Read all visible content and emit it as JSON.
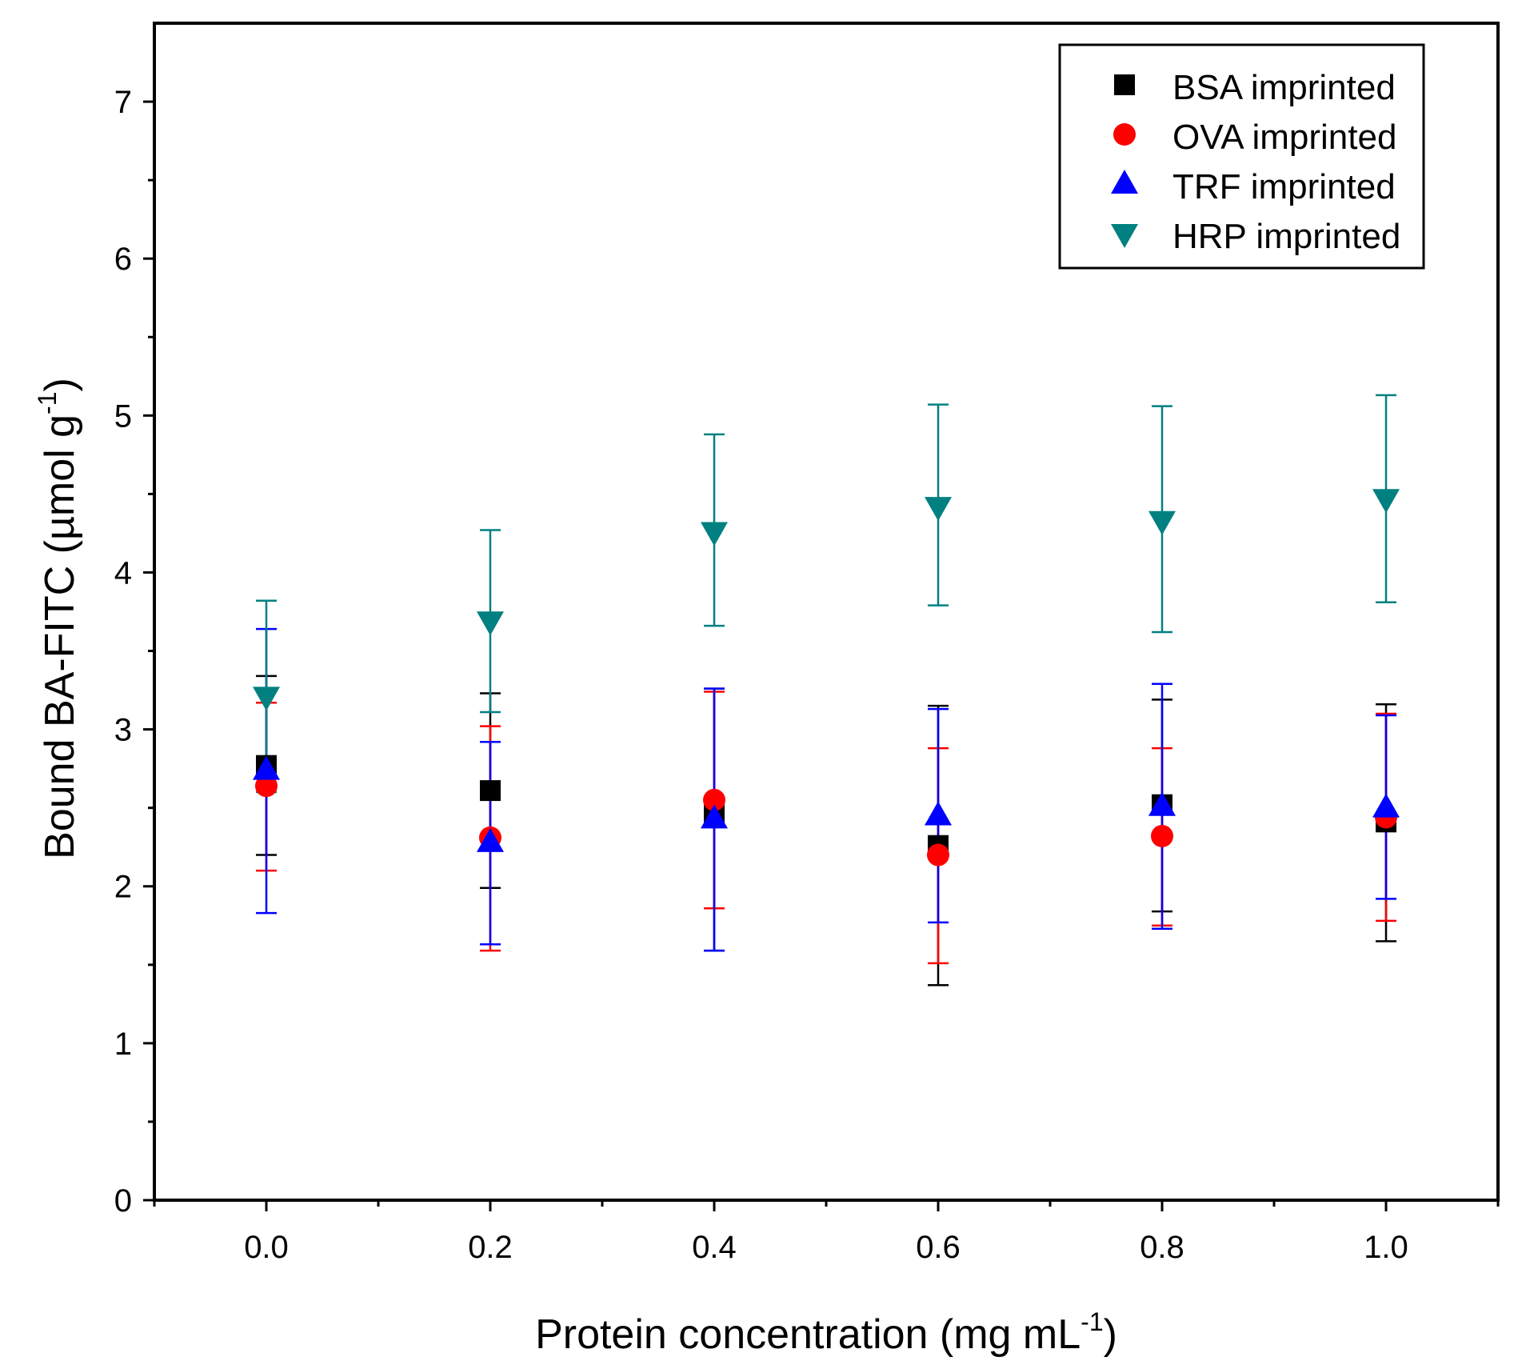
{
  "chart_data": {
    "type": "scatter",
    "title": "",
    "xlabel": "Protein concentration (mg mL",
    "xlabel_sup": "-1",
    "xlabel_end": ")",
    "ylabel": "Bound BA-FITC  (µmol g",
    "ylabel_sup": "-1",
    "ylabel_end": ")",
    "xlim": [
      -0.1,
      1.1
    ],
    "ylim": [
      0,
      7.5
    ],
    "xticks": [
      0.0,
      0.2,
      0.4,
      0.6,
      0.8,
      1.0
    ],
    "xtick_labels": [
      "0.0",
      "0.2",
      "0.4",
      "0.6",
      "0.8",
      "1.0"
    ],
    "x_minor_ticks": [
      -0.1,
      0.1,
      0.3,
      0.5,
      0.7,
      0.9,
      1.1
    ],
    "yticks": [
      0,
      1,
      2,
      3,
      4,
      5,
      6,
      7
    ],
    "ytick_labels": [
      "0",
      "1",
      "2",
      "3",
      "4",
      "5",
      "6",
      "7"
    ],
    "y_minor_ticks": [
      0.5,
      1.5,
      2.5,
      3.5,
      4.5,
      5.5,
      6.5
    ],
    "grid": false,
    "legend_position": "top-right",
    "x": [
      0.0,
      0.2,
      0.4,
      0.6,
      0.8,
      1.0
    ],
    "series": [
      {
        "name": "BSA imprinted",
        "marker": "square",
        "color": "#000000",
        "values": [
          2.77,
          2.61,
          2.47,
          2.26,
          2.52,
          2.41
        ],
        "err_low": [
          2.2,
          1.99,
          1.59,
          1.37,
          1.84,
          1.65
        ],
        "err_high": [
          3.34,
          3.23,
          3.26,
          3.15,
          3.19,
          3.16
        ]
      },
      {
        "name": "OVA imprinted",
        "marker": "circle",
        "color": "#ff0000",
        "values": [
          2.64,
          2.31,
          2.55,
          2.2,
          2.32,
          2.44
        ],
        "err_low": [
          2.1,
          1.59,
          1.86,
          1.51,
          1.75,
          1.78
        ],
        "err_high": [
          3.17,
          3.02,
          3.24,
          2.88,
          2.88,
          3.1
        ]
      },
      {
        "name": "TRF imprinted",
        "marker": "triangle-up",
        "color": "#0000ff",
        "values": [
          2.74,
          2.28,
          2.43,
          2.45,
          2.51,
          2.5
        ],
        "err_low": [
          1.83,
          1.63,
          1.59,
          1.77,
          1.73,
          1.92
        ],
        "err_high": [
          3.64,
          2.92,
          3.26,
          3.13,
          3.29,
          3.09
        ]
      },
      {
        "name": "HRP imprinted",
        "marker": "triangle-down",
        "color": "#008080",
        "values": [
          3.21,
          3.69,
          4.26,
          4.42,
          4.33,
          4.47
        ],
        "err_low": [
          2.6,
          3.11,
          3.66,
          3.79,
          3.62,
          3.81
        ],
        "err_high": [
          3.82,
          4.27,
          4.88,
          5.07,
          5.06,
          5.13
        ]
      }
    ]
  }
}
